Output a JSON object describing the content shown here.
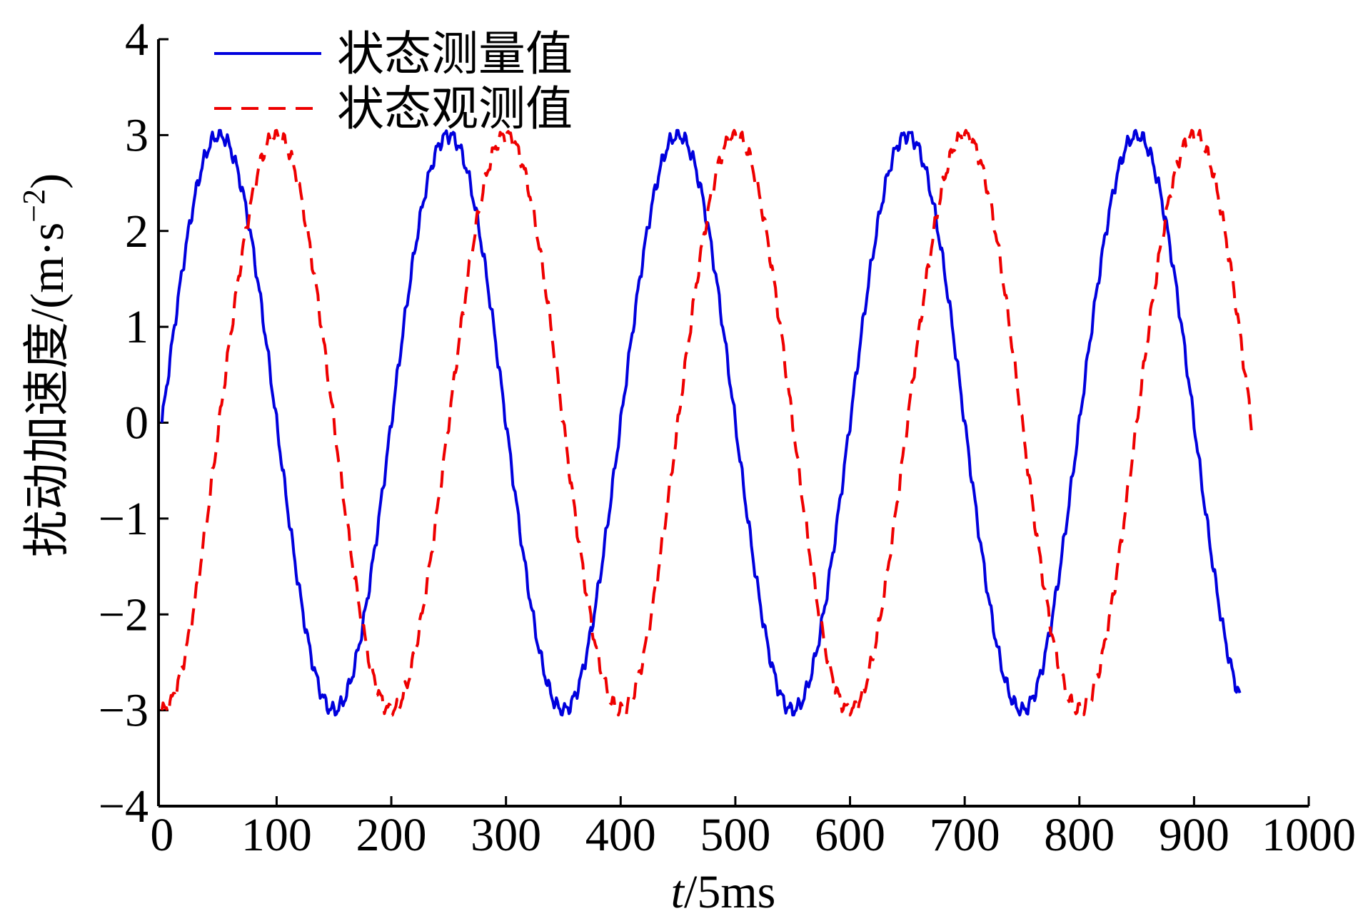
{
  "chart_data": {
    "type": "line",
    "title": "",
    "xlabel_italic": "t",
    "xlabel_rest": "/5ms",
    "ylabel_main": "扰动加速度/(m·s",
    "ylabel_sup": "−2",
    "ylabel_close": ")",
    "xlim": [
      -3,
      1000
    ],
    "ylim": [
      -4,
      4
    ],
    "x_ticks": [
      0,
      100,
      200,
      300,
      400,
      500,
      600,
      700,
      800,
      900,
      1000
    ],
    "x_tick_labels": [
      "0",
      "100",
      "200",
      "300",
      "400",
      "500",
      "600",
      "700",
      "800",
      "900",
      "1000"
    ],
    "y_ticks": [
      4,
      3,
      2,
      1,
      0,
      -1,
      -2,
      -3,
      -4
    ],
    "y_tick_labels": [
      "4",
      "3",
      "2",
      "1",
      "0",
      "−1",
      "−2",
      "−3",
      "−4"
    ],
    "grid": false,
    "legend_position": "top-left",
    "series": [
      {
        "name": "状态测量值",
        "color": "#0000dd",
        "dash": "solid",
        "amplitude": 3,
        "period": 200,
        "x_start": 0,
        "x_end": 940,
        "x": [
          0,
          50,
          100,
          150,
          200,
          250,
          300,
          350,
          400,
          450,
          500,
          550,
          600,
          650,
          700,
          750,
          800,
          850,
          900,
          940
        ],
        "y": [
          0,
          3,
          0,
          -3,
          0,
          3,
          0,
          -3,
          0,
          3,
          0,
          -3,
          0,
          3,
          0,
          -3,
          0,
          3,
          0,
          -2.8
        ]
      },
      {
        "name": "状态观测值",
        "color": "#ee0000",
        "dash": "dashed",
        "amplitude": 3,
        "period": 200,
        "x_start": 0,
        "x_end": 950,
        "x": [
          0,
          50,
          100,
          150,
          200,
          250,
          300,
          350,
          400,
          450,
          500,
          550,
          600,
          650,
          700,
          750,
          800,
          850,
          900,
          950
        ],
        "y": [
          -3,
          0,
          3,
          0,
          -3,
          0,
          3,
          0,
          -3,
          0,
          3,
          0,
          -3,
          0,
          3,
          0,
          -3,
          0,
          3,
          0
        ]
      }
    ]
  }
}
